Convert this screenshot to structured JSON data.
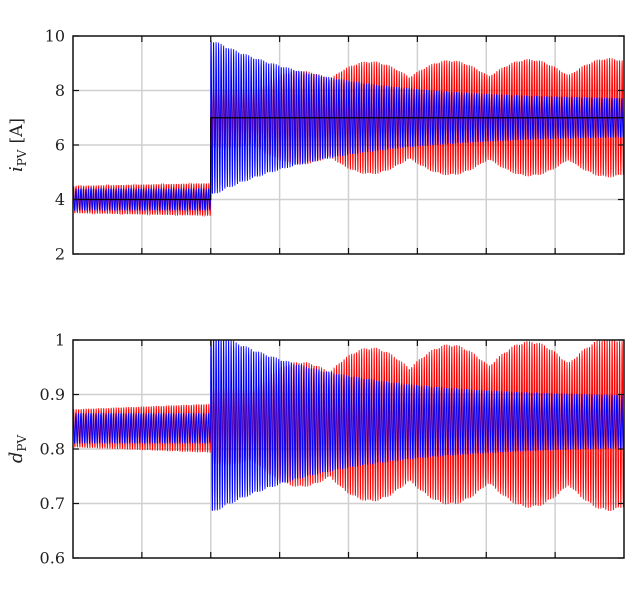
{
  "chart_data": [
    {
      "type": "line",
      "ylabel": {
        "symbol": "i",
        "subscript": "PV",
        "unit": "[A]"
      },
      "ylim": [
        2,
        10
      ],
      "yticks": [
        "2",
        "4",
        "6",
        "8",
        "10"
      ],
      "x_divisions": 8,
      "grid": true,
      "step_at_fraction": 0.25,
      "series": [
        {
          "color": "#ff0000",
          "before_step": {
            "center": 4.0,
            "amplitude": [
              0.5,
              0.6
            ]
          },
          "after_step": {
            "center": 7.0,
            "amplitude": [
              2.0,
              2.2
            ],
            "beating": true
          }
        },
        {
          "color": "#0000ff",
          "before_step": {
            "center": 4.0,
            "amplitude": [
              0.4,
              0.4
            ]
          },
          "after_step": {
            "center": 7.0,
            "amplitude": [
              2.9,
              0.65
            ],
            "beating": false
          }
        },
        {
          "color": "#000000",
          "before_step": {
            "center": 4.0,
            "amplitude": [
              0,
              0
            ]
          },
          "after_step": {
            "center": 7.0,
            "amplitude": [
              0,
              0
            ]
          }
        }
      ]
    },
    {
      "type": "line",
      "ylabel": {
        "symbol": "d",
        "subscript": "PV",
        "unit": ""
      },
      "ylim": [
        0.6,
        1.0
      ],
      "yticks": [
        "0.6",
        "0.7",
        "0.8",
        "0.9",
        "1"
      ],
      "x_divisions": 8,
      "grid": true,
      "step_at_fraction": 0.25,
      "series": [
        {
          "color": "#ff0000",
          "before_step": {
            "center": 0.838,
            "amplitude": [
              0.035,
              0.045
            ]
          },
          "after_step": {
            "center": 0.845,
            "amplitude": [
              0.13,
              0.16
            ],
            "beating": true
          }
        },
        {
          "color": "#0000ff",
          "before_step": {
            "center": 0.838,
            "amplitude": [
              0.028,
              0.028
            ]
          },
          "after_step": {
            "center": 0.85,
            "amplitude": [
              0.17,
              0.045
            ],
            "beating": false
          }
        }
      ]
    }
  ]
}
